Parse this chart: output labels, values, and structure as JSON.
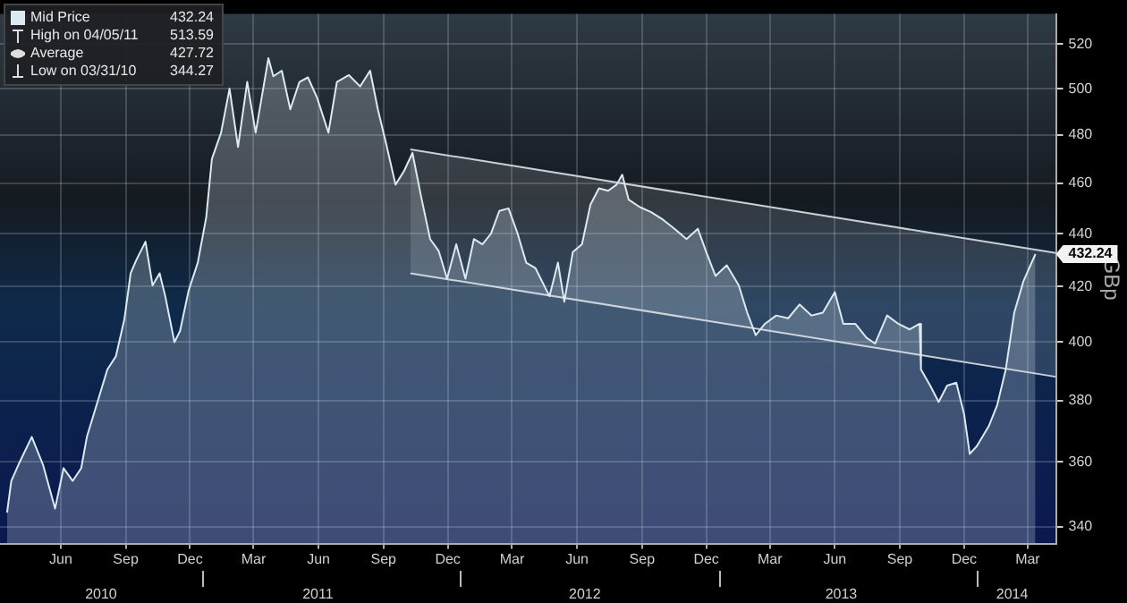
{
  "chart_data": {
    "type": "area",
    "ylabel": "GBp",
    "log": "y",
    "grid": true,
    "legend": "top left",
    "marker": "none",
    "line_style": "solid",
    "xlim": [
      "2010-03-21",
      "2014-04-24"
    ],
    "xticks": [
      {
        "value": "2010-06-15",
        "label": "Jun"
      },
      {
        "value": "2010-09-15",
        "label": "Sep"
      },
      {
        "value": "2010-12-15",
        "label": "Dec"
      },
      {
        "value": "2011-03-15",
        "label": "Mar"
      },
      {
        "value": "2011-06-15",
        "label": "Jun"
      },
      {
        "value": "2011-09-15",
        "label": "Sep"
      },
      {
        "value": "2011-12-15",
        "label": "Dec"
      },
      {
        "value": "2012-03-15",
        "label": "Mar"
      },
      {
        "value": "2012-06-15",
        "label": "Jun"
      },
      {
        "value": "2012-09-15",
        "label": "Sep"
      },
      {
        "value": "2012-12-15",
        "label": "Dec"
      },
      {
        "value": "2013-03-15",
        "label": "Mar"
      },
      {
        "value": "2013-06-15",
        "label": "Jun"
      },
      {
        "value": "2013-09-15",
        "label": "Sep"
      },
      {
        "value": "2013-12-15",
        "label": "Dec"
      },
      {
        "value": "2014-03-15",
        "label": "Mar"
      }
    ],
    "x2lim": [
      "2010-03-21",
      "2014-04-24"
    ],
    "x2ticks": [
      {
        "value": "2010-08-11",
        "label": "2010"
      },
      {
        "value": "2011-06-14",
        "label": "2011"
      },
      {
        "value": "2012-06-26",
        "label": "2012"
      },
      {
        "value": "2013-06-24",
        "label": "2013"
      },
      {
        "value": "2014-02-21",
        "label": "2014"
      }
    ],
    "ylim": [
      335,
      534
    ],
    "yticks": [
      340,
      360,
      380,
      400,
      420,
      440,
      460,
      480,
      500,
      520
    ],
    "annotations": [
      {
        "text": "432.24",
        "x": "2014-03-26",
        "y": 432.24
      },
      "432.24",
      "High on 04/05/11",
      "513.59",
      "Average",
      "427.72",
      "Low on 03/31/10",
      "344.27"
    ],
    "series": [
      {
        "name": "Mid Price",
        "color": "#dbe9f0",
        "x": [
          "2010-03-31",
          "2010-04-06",
          "2010-04-18",
          "2010-05-05",
          "2010-05-21",
          "2010-06-07",
          "2010-06-19",
          "2010-07-02",
          "2010-07-14",
          "2010-07-22",
          "2010-08-08",
          "2010-08-20",
          "2010-09-01",
          "2010-09-13",
          "2010-09-22",
          "2010-09-30",
          "2010-10-13",
          "2010-10-23",
          "2010-11-02",
          "2010-11-10",
          "2010-11-23",
          "2010-12-01",
          "2010-12-13",
          "2010-12-26",
          "2011-01-07",
          "2011-01-15",
          "2011-01-28",
          "2011-02-09",
          "2011-02-21",
          "2011-03-06",
          "2011-03-18",
          "2011-04-05",
          "2011-04-12",
          "2011-04-24",
          "2011-05-06",
          "2011-05-19",
          "2011-05-31",
          "2011-06-13",
          "2011-06-29",
          "2011-07-11",
          "2011-07-28",
          "2011-08-13",
          "2011-08-27",
          "2011-09-07",
          "2011-09-19",
          "2011-10-02",
          "2011-10-14",
          "2011-10-26",
          "2011-11-07",
          "2011-11-20",
          "2011-12-02",
          "2011-12-14",
          "2011-12-27",
          "2012-01-09",
          "2012-01-21",
          "2012-02-02",
          "2012-02-14",
          "2012-02-26",
          "2012-03-10",
          "2012-03-23",
          "2012-04-04",
          "2012-04-17",
          "2012-05-07",
          "2012-05-19",
          "2012-05-28",
          "2012-06-09",
          "2012-06-22",
          "2012-07-04",
          "2012-07-16",
          "2012-07-29",
          "2012-08-10",
          "2012-08-18",
          "2012-08-27",
          "2012-09-12",
          "2012-09-28",
          "2012-10-15",
          "2012-10-31",
          "2012-11-17",
          "2012-12-03",
          "2012-12-15",
          "2012-12-28",
          "2013-01-13",
          "2013-01-30",
          "2013-02-11",
          "2013-02-23",
          "2013-03-08",
          "2013-03-24",
          "2013-04-10",
          "2013-04-26",
          "2013-05-13",
          "2013-05-29",
          "2013-06-15",
          "2013-06-27",
          "2013-07-14",
          "2013-07-30",
          "2013-08-11",
          "2013-08-28",
          "2013-09-13",
          "2013-09-29",
          "2013-10-13",
          "2013-10-15",
          "2013-10-28",
          "2013-11-09",
          "2013-11-21",
          "2013-12-04",
          "2013-12-15",
          "2013-12-23",
          "2014-01-02",
          "2014-01-19",
          "2014-01-31",
          "2014-02-12",
          "2014-02-24",
          "2014-03-09",
          "2014-03-26"
        ],
        "values": [
          344.27,
          354,
          360,
          368,
          359,
          345.5,
          358,
          354,
          358,
          368,
          381,
          390.5,
          395,
          408,
          425,
          430,
          437,
          420.5,
          425,
          416.5,
          400,
          404,
          418.5,
          429,
          446.5,
          470,
          481,
          500,
          475,
          503,
          481,
          513.59,
          505.5,
          508,
          491,
          503,
          505,
          496,
          481,
          503,
          506,
          501,
          508,
          491,
          476,
          459.5,
          465,
          472.5,
          455,
          438,
          433.5,
          423,
          436,
          423,
          438,
          436,
          440,
          449,
          450,
          440,
          429,
          427,
          416.5,
          429,
          414.5,
          433,
          436,
          451.5,
          458,
          457,
          459.5,
          463.5,
          453.5,
          450.5,
          448.5,
          445.5,
          442,
          438,
          442,
          433,
          424,
          428,
          420.5,
          410.5,
          402.5,
          406.5,
          409.5,
          408.5,
          413.5,
          409.5,
          410.5,
          418,
          406.5,
          406.5,
          401.5,
          399.5,
          409.5,
          406.5,
          404.5,
          406.5,
          390.5,
          385,
          379.5,
          385,
          386,
          375.5,
          362.5,
          365,
          371.5,
          378.5,
          390.5,
          410.5,
          422,
          432.24
        ]
      },
      {
        "type": "line",
        "color": "#c9ced4",
        "x": [
          "2011-10-23",
          "2014-04-24"
        ],
        "values": [
          474,
          432.7
        ],
        "lower": [
          425,
          388
        ],
        "upper": [
          474,
          432.7
        ]
      },
      {
        "type": "line",
        "color": "#c9ced4",
        "x": [
          "2011-10-23",
          "2014-04-24"
        ],
        "values": [
          425,
          388
        ]
      }
    ]
  }
}
